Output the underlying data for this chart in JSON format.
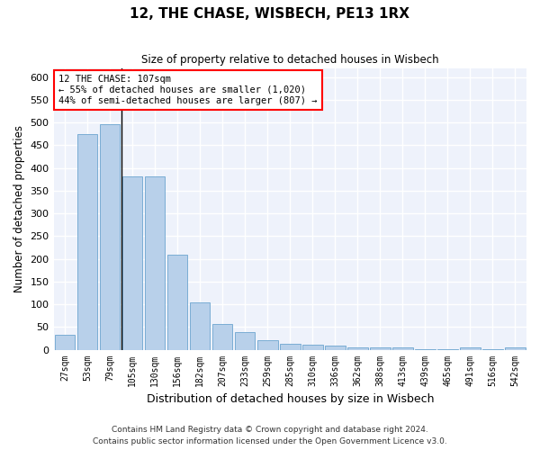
{
  "title": "12, THE CHASE, WISBECH, PE13 1RX",
  "subtitle": "Size of property relative to detached houses in Wisbech",
  "xlabel": "Distribution of detached houses by size in Wisbech",
  "ylabel": "Number of detached properties",
  "bar_color": "#b8d0ea",
  "bar_edge_color": "#7aadd4",
  "background_color": "#eef2fb",
  "grid_color": "#ffffff",
  "categories": [
    "27sqm",
    "53sqm",
    "79sqm",
    "105sqm",
    "130sqm",
    "156sqm",
    "182sqm",
    "207sqm",
    "233sqm",
    "259sqm",
    "285sqm",
    "310sqm",
    "336sqm",
    "362sqm",
    "388sqm",
    "413sqm",
    "439sqm",
    "465sqm",
    "491sqm",
    "516sqm",
    "542sqm"
  ],
  "values": [
    32,
    475,
    497,
    381,
    381,
    210,
    104,
    57,
    38,
    20,
    13,
    11,
    10,
    5,
    5,
    5,
    2,
    1,
    5,
    1,
    5
  ],
  "annotation_title": "12 THE CHASE: 107sqm",
  "annotation_line1": "← 55% of detached houses are smaller (1,020)",
  "annotation_line2": "44% of semi-detached houses are larger (807) →",
  "marker_bin_index": 3,
  "vline_x": 2.5,
  "ylim": [
    0,
    620
  ],
  "yticks": [
    0,
    50,
    100,
    150,
    200,
    250,
    300,
    350,
    400,
    450,
    500,
    550,
    600
  ],
  "footnote1": "Contains HM Land Registry data © Crown copyright and database right 2024.",
  "footnote2": "Contains public sector information licensed under the Open Government Licence v3.0."
}
